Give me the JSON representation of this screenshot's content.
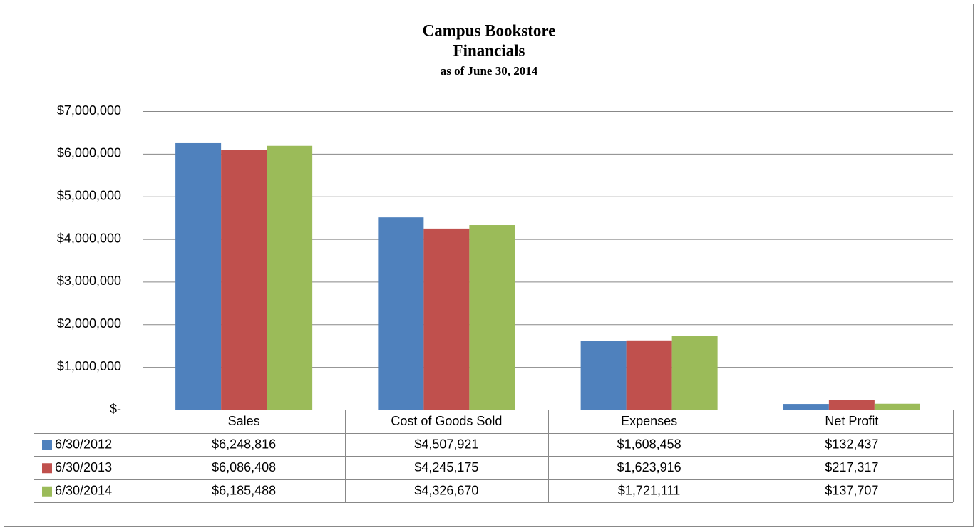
{
  "chart_data": {
    "type": "bar",
    "title": "Campus Bookstore",
    "subtitle": "Financials",
    "subtitle2": "as of June 30, 2014",
    "categories": [
      "Sales",
      "Cost of Goods Sold",
      "Expenses",
      "Net Profit"
    ],
    "series": [
      {
        "name": "6/30/2012",
        "color": "#4f81bd",
        "values": [
          6248816,
          4507921,
          1608458,
          132437
        ],
        "value_labels": [
          "$6,248,816",
          "$4,507,921",
          "$1,608,458",
          "$132,437"
        ]
      },
      {
        "name": "6/30/2013",
        "color": "#c0504d",
        "values": [
          6086408,
          4245175,
          1623916,
          217317
        ],
        "value_labels": [
          "$6,086,408",
          "$4,245,175",
          "$1,623,916",
          "$217,317"
        ]
      },
      {
        "name": "6/30/2014",
        "color": "#9bbb59",
        "values": [
          6185488,
          4326670,
          1721111,
          137707
        ],
        "value_labels": [
          "$6,185,488",
          "$4,326,670",
          "$1,721,111",
          "$137,707"
        ]
      }
    ],
    "ylim": [
      0,
      7000000
    ],
    "yticks": [
      {
        "value": 0,
        "label": "$-"
      },
      {
        "value": 1000000,
        "label": "$1,000,000"
      },
      {
        "value": 2000000,
        "label": "$2,000,000"
      },
      {
        "value": 3000000,
        "label": "$3,000,000"
      },
      {
        "value": 4000000,
        "label": "$4,000,000"
      },
      {
        "value": 5000000,
        "label": "$5,000,000"
      },
      {
        "value": 6000000,
        "label": "$6,000,000"
      },
      {
        "value": 7000000,
        "label": "$7,000,000"
      }
    ],
    "grid": true
  }
}
